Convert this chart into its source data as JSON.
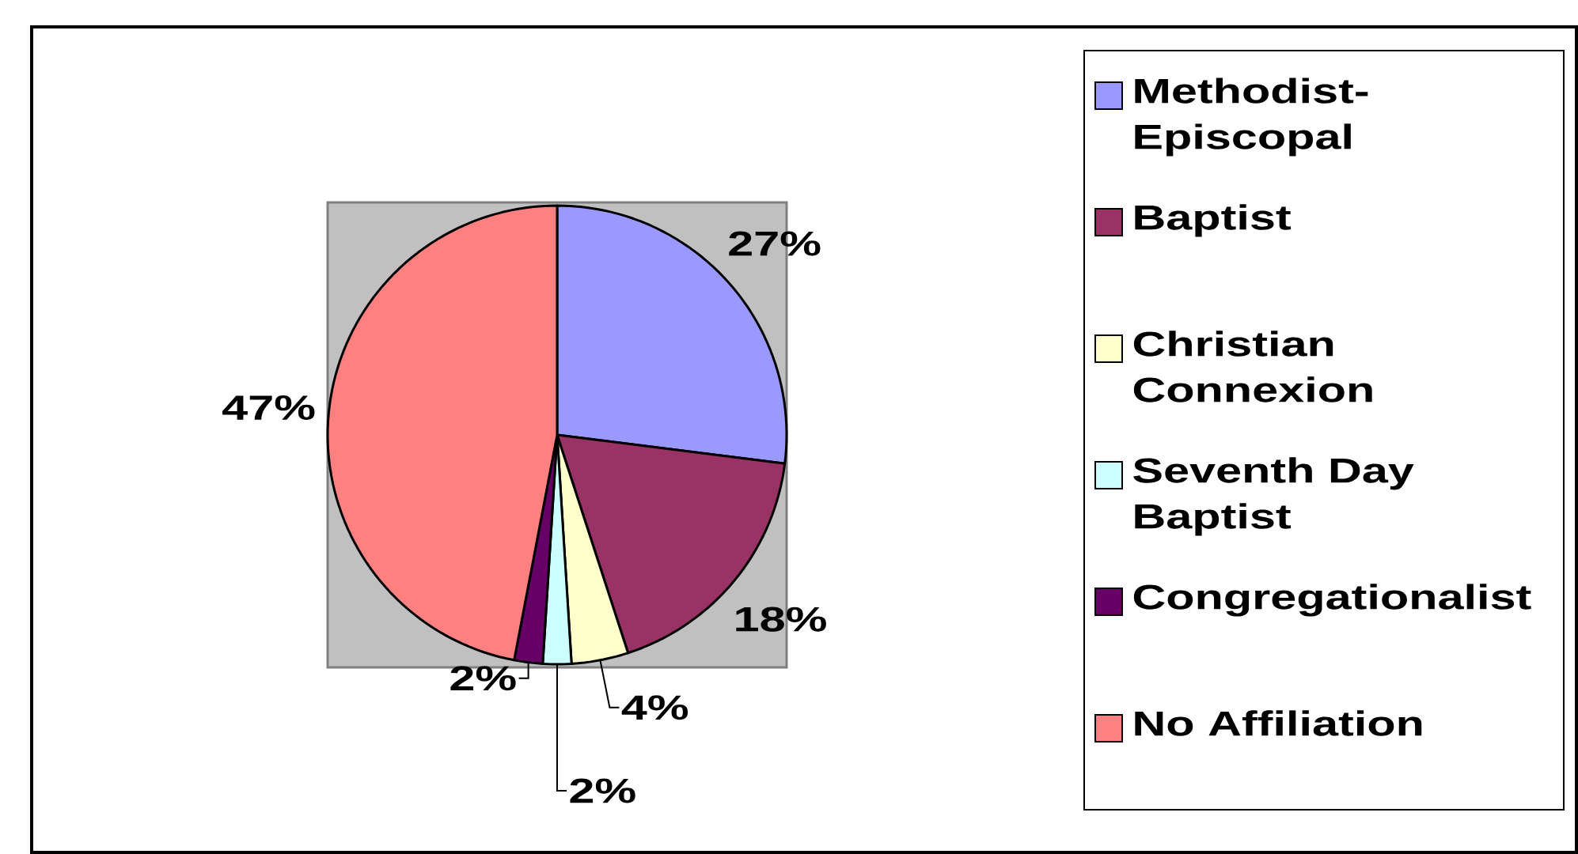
{
  "chart_data": {
    "type": "pie",
    "categories": [
      "Methodist-Episcopal",
      "Baptist",
      "Christian Connexion",
      "Seventh Day Baptist",
      "Congregationalist",
      "No Affiliation"
    ],
    "values": [
      27,
      18,
      4,
      2,
      2,
      47
    ],
    "value_labels": [
      "27%",
      "18%",
      "4%",
      "2%",
      "2%",
      "47%"
    ],
    "colors": [
      "#9999ff",
      "#993366",
      "#ffffcc",
      "#ccffff",
      "#660066",
      "#ff8080"
    ],
    "legend": "right"
  }
}
